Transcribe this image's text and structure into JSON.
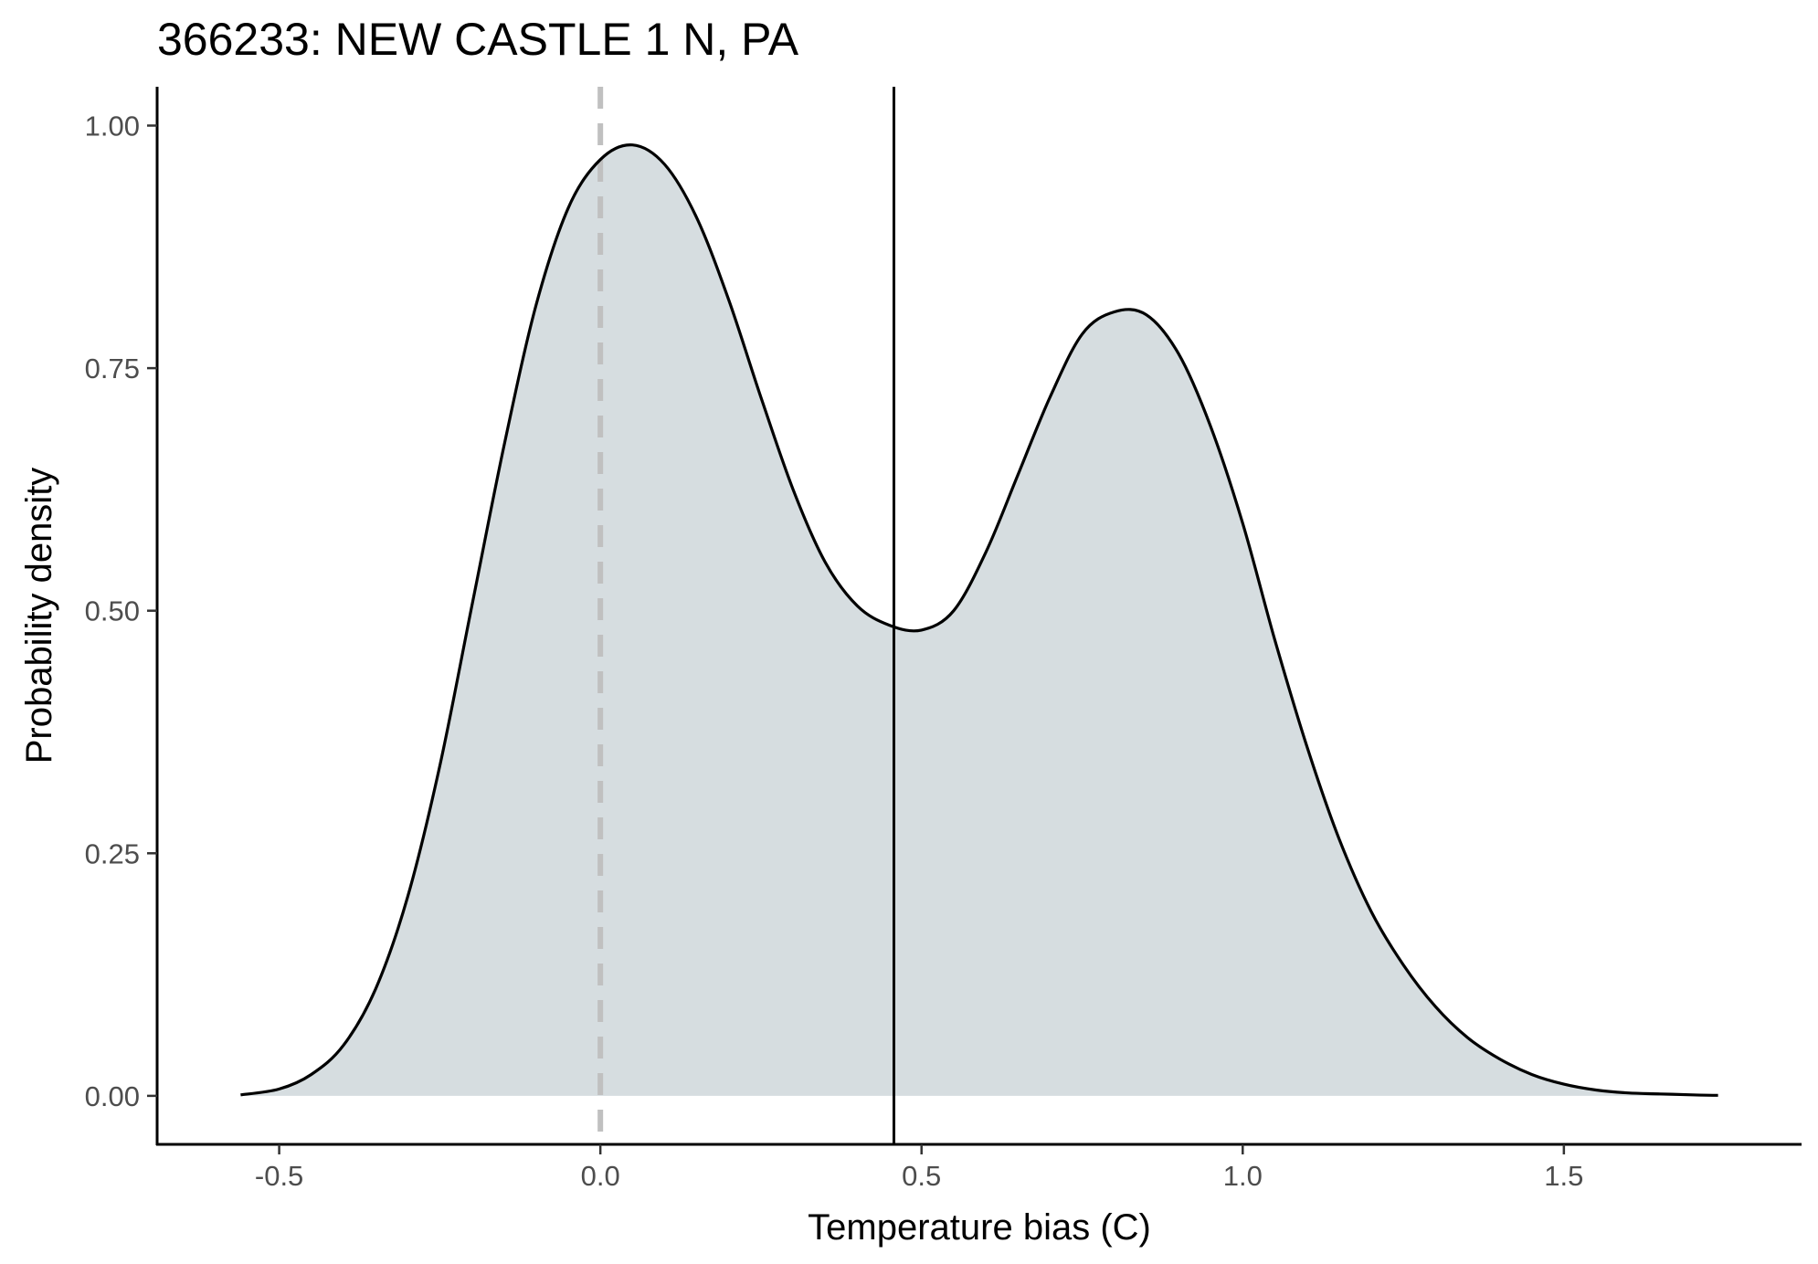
{
  "chart_data": {
    "type": "area",
    "title": "366233: NEW CASTLE 1 N, PA",
    "xlabel": "Temperature bias (C)",
    "ylabel": "Probability density",
    "xlim": [
      -0.69,
      1.87
    ],
    "ylim": [
      -0.05,
      1.04
    ],
    "x_ticks": [
      -0.5,
      0.0,
      0.5,
      1.0,
      1.5
    ],
    "x_tick_labels": [
      "-0.5",
      "0.0",
      "0.5",
      "1.0",
      "1.5"
    ],
    "y_ticks": [
      0.0,
      0.25,
      0.5,
      0.75,
      1.0
    ],
    "y_tick_labels": [
      "0.00",
      "0.25",
      "0.50",
      "0.75",
      "1.00"
    ],
    "grid": false,
    "fill_color": "#d6dde0",
    "line_color": "#000000",
    "density": {
      "x": [
        -0.56,
        -0.5,
        -0.45,
        -0.4,
        -0.35,
        -0.3,
        -0.25,
        -0.2,
        -0.15,
        -0.1,
        -0.05,
        0.0,
        0.05,
        0.1,
        0.15,
        0.2,
        0.25,
        0.3,
        0.35,
        0.4,
        0.45,
        0.5,
        0.55,
        0.6,
        0.65,
        0.7,
        0.75,
        0.8,
        0.85,
        0.9,
        0.95,
        1.0,
        1.05,
        1.1,
        1.15,
        1.2,
        1.25,
        1.3,
        1.35,
        1.4,
        1.45,
        1.5,
        1.55,
        1.6,
        1.65,
        1.7,
        1.74
      ],
      "y": [
        0.001,
        0.007,
        0.022,
        0.052,
        0.11,
        0.205,
        0.34,
        0.505,
        0.67,
        0.815,
        0.915,
        0.965,
        0.98,
        0.96,
        0.905,
        0.82,
        0.72,
        0.625,
        0.55,
        0.505,
        0.485,
        0.48,
        0.5,
        0.56,
        0.64,
        0.72,
        0.785,
        0.808,
        0.805,
        0.765,
        0.69,
        0.59,
        0.47,
        0.36,
        0.265,
        0.19,
        0.135,
        0.092,
        0.06,
        0.038,
        0.022,
        0.012,
        0.006,
        0.003,
        0.002,
        0.001,
        0.0005
      ]
    },
    "reference_lines": [
      {
        "x": 0.0,
        "style": "dashed",
        "color": "#c0c0c0"
      },
      {
        "x": 0.457,
        "style": "solid",
        "color": "#000000"
      }
    ]
  }
}
